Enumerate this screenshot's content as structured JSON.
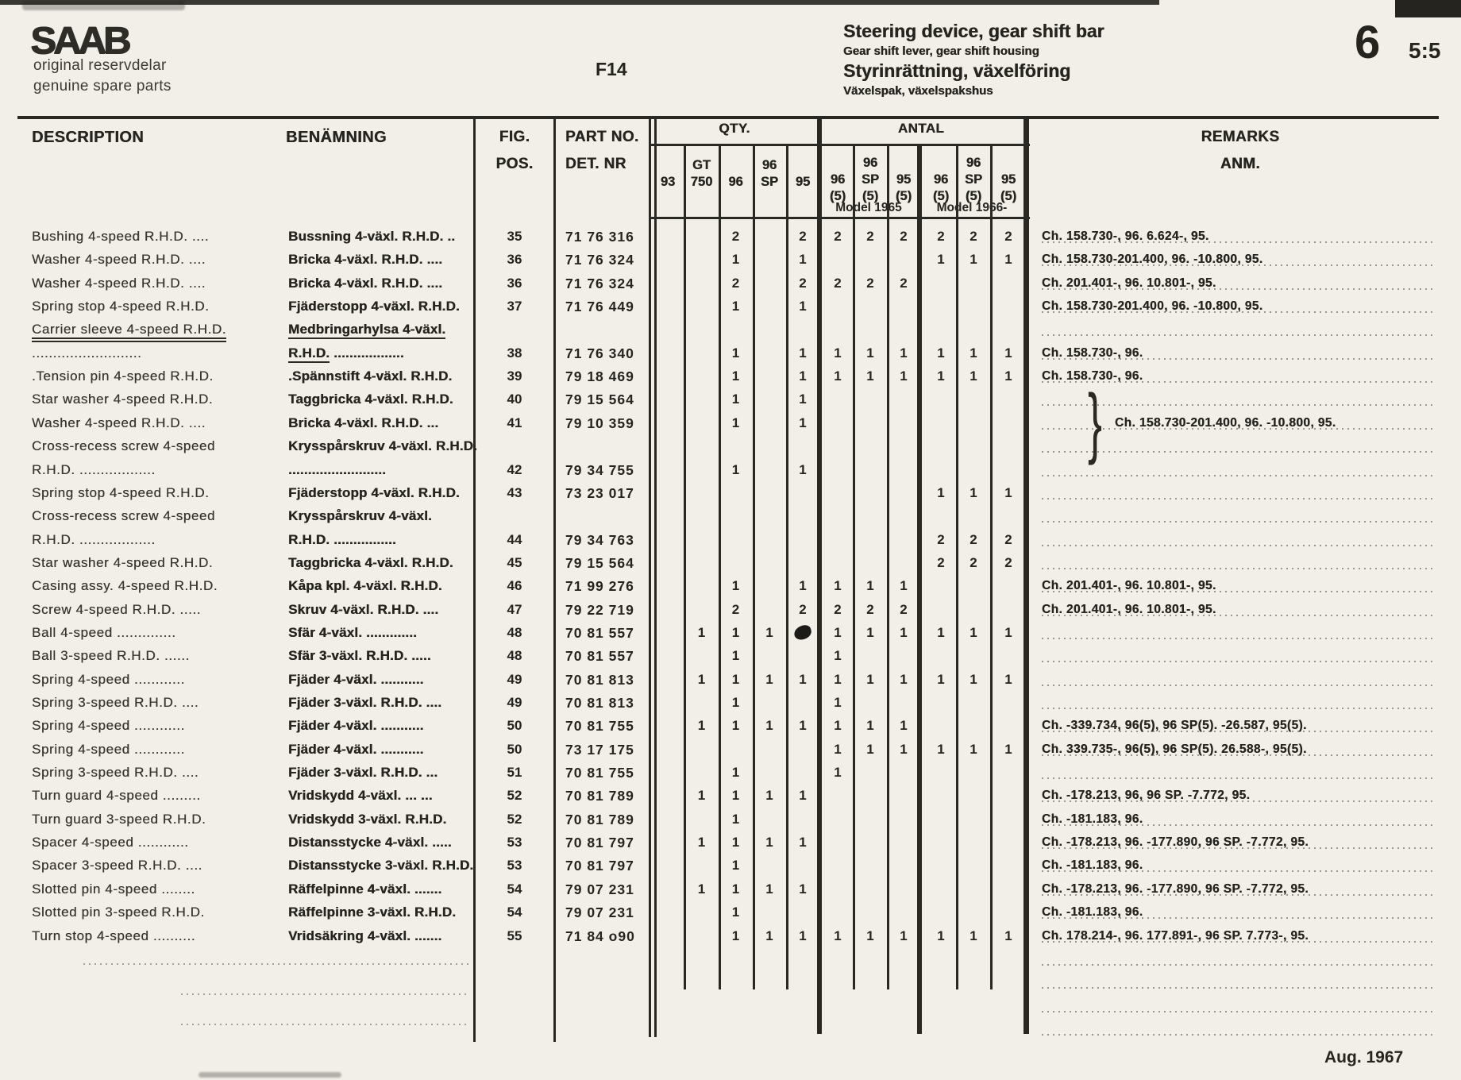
{
  "header": {
    "logo": "SAAB",
    "logo_sub1": "original reservdelar",
    "logo_sub2": "genuine spare parts",
    "fig_ref": "F14",
    "title_en": "Steering device, gear shift bar",
    "subtitle_en": "Gear shift lever, gear shift housing",
    "title_sv": "Styrinrättning, växelföring",
    "subtitle_sv": "Växelspak, växelspakshus",
    "page_number_big": "6",
    "page_number_small": "5:5"
  },
  "table": {
    "col_description": "DESCRIPTION",
    "col_benamning": "BENÄMNING",
    "col_fig_line1": "FIG.",
    "col_fig_line2": "POS.",
    "col_part_line1": "PART NO.",
    "col_part_line2": "DET. NR",
    "qty_header": "QTY.",
    "antal_header": "ANTAL",
    "qty_cols": [
      [
        "93"
      ],
      [
        "GT",
        "750"
      ],
      [
        "96"
      ],
      [
        "96",
        "SP"
      ],
      [
        "95"
      ],
      [
        "96",
        "(5)"
      ],
      [
        "96",
        "SP",
        "(5)"
      ],
      [
        "95",
        "(5)"
      ],
      [
        "96",
        "(5)"
      ],
      [
        "96",
        "SP",
        "(5)"
      ],
      [
        "95",
        "(5)"
      ]
    ],
    "model_1965": "Model 1965",
    "model_1966": "Model 1966-",
    "col_remarks_line1": "REMARKS",
    "col_remarks_line2": "ANM.",
    "bracket": "}"
  },
  "rows": [
    {
      "desc": "Bushing 4-speed R.H.D.  ....",
      "ben": "Bussning 4-växl. R.H.D.  ..",
      "fig": "35",
      "part": "71 76 316",
      "q": [
        "",
        "",
        "2",
        "",
        "2",
        "2",
        "2",
        "2",
        "2",
        "2",
        "2"
      ],
      "remark": "Ch. 158.730-, 96.  6.624-, 95."
    },
    {
      "desc": "Washer 4-speed R.H.D.  ....",
      "ben": "Bricka 4-växl. R.H.D.  ....",
      "fig": "36",
      "part": "71 76 324",
      "q": [
        "",
        "",
        "1",
        "",
        "1",
        "",
        "",
        "",
        "1",
        "1",
        "1"
      ],
      "remark": "Ch. 158.730-201.400, 96.  -10.800, 95."
    },
    {
      "desc": "Washer 4-speed R.H.D.  ....",
      "ben": "Bricka 4-växl. R.H.D.  ....",
      "fig": "36",
      "part": "71 76 324",
      "q": [
        "",
        "",
        "2",
        "",
        "2",
        "2",
        "2",
        "2",
        "",
        "",
        ""
      ],
      "remark": "Ch. 201.401-, 96.  10.801-, 95."
    },
    {
      "desc": "Spring stop 4-speed R.H.D.",
      "ben": "Fjäderstopp 4-växl. R.H.D.",
      "fig": "37",
      "part": "71 76 449",
      "q": [
        "",
        "",
        "1",
        "",
        "1",
        "",
        "",
        "",
        "",
        "",
        ""
      ],
      "remark": "Ch. 158.730-201.400, 96.  -10.800, 95."
    },
    {
      "desc_u": "Carrier sleeve 4-speed R.H.D.",
      "ben_u": "Medbringarhylsa 4-växl."
    },
    {
      "desc": "..........................",
      "ben_u": "R.H.D.",
      "ben": " ..................",
      "fig": "38",
      "part": "71 76 340",
      "q": [
        "",
        "",
        "1",
        "",
        "1",
        "1",
        "1",
        "1",
        "1",
        "1",
        "1"
      ],
      "remark": "Ch. 158.730-, 96."
    },
    {
      "desc": ".Tension pin 4-speed R.H.D.",
      "ben": ".Spännstift 4-växl. R.H.D.",
      "fig": "39",
      "part": "79 18 469",
      "q": [
        "",
        "",
        "1",
        "",
        "1",
        "1",
        "1",
        "1",
        "1",
        "1",
        "1"
      ],
      "remark": "Ch. 158.730-, 96."
    },
    {
      "desc": "Star washer 4-speed R.H.D.",
      "ben": "Taggbricka 4-växl. R.H.D.",
      "fig": "40",
      "part": "79 15 564",
      "q": [
        "",
        "",
        "1",
        "",
        "1",
        "",
        "",
        "",
        "",
        "",
        ""
      ]
    },
    {
      "desc": "Washer 4-speed R.H.D.  ....",
      "ben": "Bricka 4-växl. R.H.D.  ...",
      "fig": "41",
      "part": "79 10 359",
      "q": [
        "",
        "",
        "1",
        "",
        "1",
        "",
        "",
        "",
        "",
        "",
        ""
      ],
      "remark": "Ch. 158.730-201.400, 96.  -10.800, 95.",
      "indent": true
    },
    {
      "desc": "Cross-recess screw 4-speed",
      "ben": "Krysspårskruv 4-växl. R.H.D."
    },
    {
      "desc": "R.H.D.  ..................",
      "ben": ".........................",
      "fig": "42",
      "part": "79 34 755",
      "q": [
        "",
        "",
        "1",
        "",
        "1",
        "",
        "",
        "",
        "",
        "",
        ""
      ]
    },
    {
      "desc": "Spring stop 4-speed R.H.D.",
      "ben": "Fjäderstopp 4-växl. R.H.D.",
      "fig": "43",
      "part": "73 23 017",
      "q": [
        "",
        "",
        "",
        "",
        "",
        "",
        "",
        "",
        "1",
        "1",
        "1"
      ]
    },
    {
      "desc": "Cross-recess screw 4-speed",
      "ben": "Krysspårskruv 4-växl."
    },
    {
      "desc": "R.H.D.  ..................",
      "ben": "R.H.D.  ................",
      "fig": "44",
      "part": "79 34 763",
      "q": [
        "",
        "",
        "",
        "",
        "",
        "",
        "",
        "",
        "2",
        "2",
        "2"
      ]
    },
    {
      "desc": "Star washer 4-speed R.H.D.",
      "ben": "Taggbricka 4-växl. R.H.D.",
      "fig": "45",
      "part": "79 15 564",
      "q": [
        "",
        "",
        "",
        "",
        "",
        "",
        "",
        "",
        "2",
        "2",
        "2"
      ]
    },
    {
      "desc": "Casing assy. 4-speed R.H.D.",
      "ben": "Kåpa kpl. 4-växl. R.H.D.",
      "fig": "46",
      "part": "71 99 276",
      "q": [
        "",
        "",
        "1",
        "",
        "1",
        "1",
        "1",
        "1",
        "",
        "",
        ""
      ],
      "remark": "Ch. 201.401-, 96.  10.801-, 95."
    },
    {
      "desc": "Screw 4-speed R.H.D.  .....",
      "ben": "Skruv 4-växl. R.H.D.  ....",
      "fig": "47",
      "part": "79 22 719",
      "q": [
        "",
        "",
        "2",
        "",
        "2",
        "2",
        "2",
        "2",
        "",
        "",
        ""
      ],
      "remark": "Ch. 201.401-, 96.  10.801-, 95."
    },
    {
      "desc": "Ball 4-speed ..............",
      "ben": "Sfär 4-växl.  .............",
      "fig": "48",
      "part": "70 81 557",
      "q": [
        "",
        "1",
        "1",
        "1",
        "1",
        "1",
        "1",
        "1",
        "1",
        "1",
        "1"
      ],
      "blot": true
    },
    {
      "desc": "Ball 3-speed R.H.D.  ......",
      "ben": "Sfär 3-växl. R.H.D.  .....",
      "fig": "48",
      "part": "70 81 557",
      "q": [
        "",
        "",
        "1",
        "",
        "",
        "1",
        "",
        "",
        "",
        "",
        ""
      ]
    },
    {
      "desc": "Spring 4-speed ............",
      "ben": "Fjäder 4-växl.  ...........",
      "fig": "49",
      "part": "70 81 813",
      "q": [
        "",
        "1",
        "1",
        "1",
        "1",
        "1",
        "1",
        "1",
        "1",
        "1",
        "1"
      ]
    },
    {
      "desc": "Spring 3-speed R.H.D.  ....",
      "ben": "Fjäder 3-växl. R.H.D.  ....",
      "fig": "49",
      "part": "70 81 813",
      "q": [
        "",
        "",
        "1",
        "",
        "",
        "1",
        "",
        "",
        "",
        "",
        ""
      ]
    },
    {
      "desc": "Spring 4-speed ............",
      "ben": "Fjäder 4-växl.  ...........",
      "fig": "50",
      "part": "70 81 755",
      "q": [
        "",
        "1",
        "1",
        "1",
        "1",
        "1",
        "1",
        "1",
        "",
        "",
        ""
      ],
      "remark": "Ch. -339.734, 96(5), 96 SP(5).  -26.587, 95(5)."
    },
    {
      "desc": "Spring 4-speed ............",
      "ben": "Fjäder 4-växl.  ...........",
      "fig": "50",
      "part": "73 17 175",
      "q": [
        "",
        "",
        "",
        "",
        "",
        "1",
        "1",
        "1",
        "1",
        "1",
        "1"
      ],
      "remark": "Ch. 339.735-, 96(5), 96 SP(5).  26.588-, 95(5)."
    },
    {
      "desc": "Spring 3-speed R.H.D.  ....",
      "ben": "Fjäder 3-växl. R.H.D.  ...",
      "fig": "51",
      "part": "70 81 755",
      "q": [
        "",
        "",
        "1",
        "",
        "",
        "1",
        "",
        "",
        "",
        "",
        ""
      ]
    },
    {
      "desc": "Turn guard 4-speed .........",
      "ben": "Vridskydd 4-växl.  ...  ...",
      "fig": "52",
      "part": "70 81 789",
      "q": [
        "",
        "1",
        "1",
        "1",
        "1",
        "",
        "",
        "",
        "",
        "",
        ""
      ],
      "remark": "Ch. -178.213, 96, 96 SP.  -7.772, 95."
    },
    {
      "desc": "Turn guard 3-speed R.H.D.",
      "ben": "Vridskydd 3-växl. R.H.D.",
      "fig": "52",
      "part": "70 81 789",
      "q": [
        "",
        "",
        "1",
        "",
        "",
        "",
        "",
        "",
        "",
        "",
        ""
      ],
      "remark": "Ch. -181.183, 96."
    },
    {
      "desc": "Spacer 4-speed ............",
      "ben": "Distansstycke 4-växl.  .....",
      "fig": "53",
      "part": "70 81 797",
      "q": [
        "",
        "1",
        "1",
        "1",
        "1",
        "",
        "",
        "",
        "",
        "",
        ""
      ],
      "remark": "Ch. -178.213, 96.  -177.890, 96 SP.  -7.772, 95."
    },
    {
      "desc": "Spacer 3-speed R.H.D.  ....",
      "ben": "Distansstycke 3-växl. R.H.D.",
      "fig": "53",
      "part": "70 81 797",
      "q": [
        "",
        "",
        "1",
        "",
        "",
        "",
        "",
        "",
        "",
        "",
        ""
      ],
      "remark": "Ch. -181.183, 96."
    },
    {
      "desc": "Slotted pin 4-speed ........",
      "ben": "Räffelpinne 4-växl.  .......",
      "fig": "54",
      "part": "79 07 231",
      "q": [
        "",
        "1",
        "1",
        "1",
        "1",
        "",
        "",
        "",
        "",
        "",
        ""
      ],
      "remark": "Ch. -178.213, 96.  -177.890, 96 SP.  -7.772, 95."
    },
    {
      "desc": "Slotted pin 3-speed R.H.D.",
      "ben": "Räffelpinne 3-växl. R.H.D.",
      "fig": "54",
      "part": "79 07 231",
      "q": [
        "",
        "",
        "1",
        "",
        "",
        "",
        "",
        "",
        "",
        "",
        ""
      ],
      "remark": "Ch. -181.183, 96."
    },
    {
      "desc": "Turn stop 4-speed ..........",
      "ben": "Vridsäkring 4-växl.  .......",
      "fig": "55",
      "part": "71 84 o90",
      "q": [
        "",
        "",
        "1",
        "1",
        "1",
        "1",
        "1",
        "1",
        "1",
        "1",
        "1"
      ],
      "remark": "Ch. 178.214-, 96.  177.891-, 96 SP.  7.773-, 95."
    }
  ],
  "footer": {
    "date": "Aug. 1967"
  }
}
